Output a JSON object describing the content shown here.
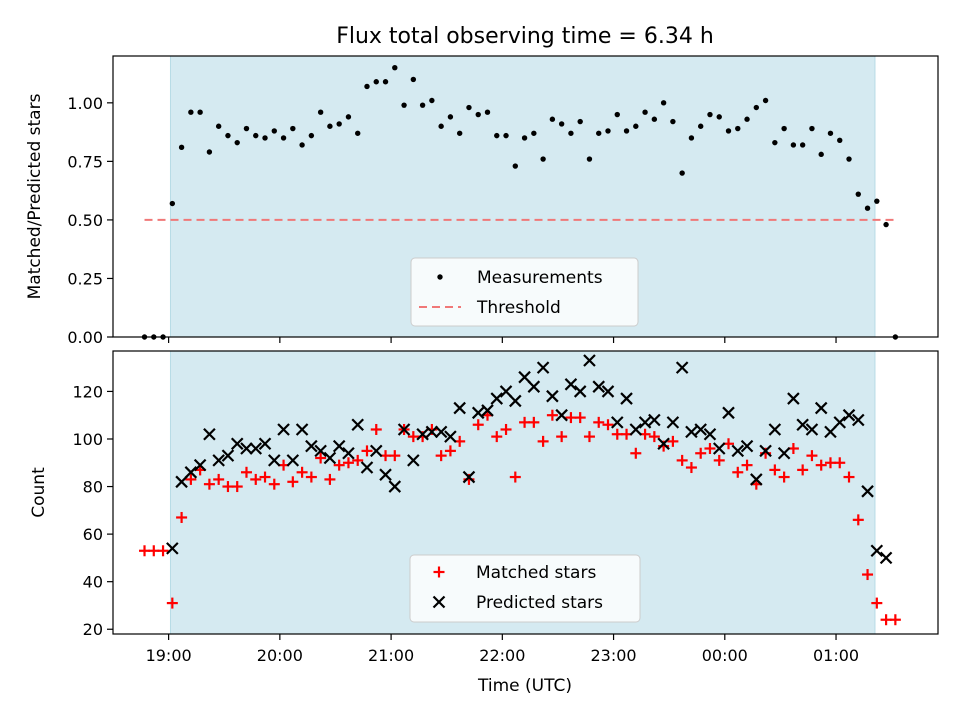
{
  "chart_data": [
    {
      "type": "scatter",
      "title": "Flux total observing time = 6.34 h",
      "xlabel": "",
      "ylabel": "Matched/Predicted stars",
      "xlim": [
        "18:30",
        "01:55"
      ],
      "ylim": [
        0.0,
        1.2
      ],
      "yticks": [
        0.0,
        0.25,
        0.5,
        0.75,
        1.0
      ],
      "ytick_labels": [
        "0.00",
        "0.25",
        "0.50",
        "0.75",
        "1.00"
      ],
      "shaded_interval": [
        "19:01",
        "01:21"
      ],
      "legend_location": "lower center",
      "series": [
        {
          "name": "Measurements",
          "kind": "points",
          "color": "#000000",
          "points": [
            [
              "18:47",
              0.0
            ],
            [
              "18:52",
              0.0
            ],
            [
              "18:57",
              0.0
            ],
            [
              "19:02",
              0.57
            ],
            [
              "19:07",
              0.81
            ],
            [
              "19:12",
              0.96
            ],
            [
              "19:17",
              0.96
            ],
            [
              "19:22",
              0.79
            ],
            [
              "19:27",
              0.9
            ],
            [
              "19:32",
              0.86
            ],
            [
              "19:37",
              0.83
            ],
            [
              "19:42",
              0.89
            ],
            [
              "19:47",
              0.86
            ],
            [
              "19:52",
              0.85
            ],
            [
              "19:57",
              0.88
            ],
            [
              "20:02",
              0.85
            ],
            [
              "20:07",
              0.89
            ],
            [
              "20:12",
              0.82
            ],
            [
              "20:17",
              0.86
            ],
            [
              "20:22",
              0.96
            ],
            [
              "20:27",
              0.9
            ],
            [
              "20:32",
              0.91
            ],
            [
              "20:37",
              0.94
            ],
            [
              "20:42",
              0.87
            ],
            [
              "20:47",
              1.07
            ],
            [
              "20:52",
              1.09
            ],
            [
              "20:57",
              1.09
            ],
            [
              "21:02",
              1.15
            ],
            [
              "21:07",
              0.99
            ],
            [
              "21:12",
              1.1
            ],
            [
              "21:17",
              0.99
            ],
            [
              "21:22",
              1.01
            ],
            [
              "21:27",
              0.9
            ],
            [
              "21:32",
              0.94
            ],
            [
              "21:37",
              0.87
            ],
            [
              "21:42",
              0.98
            ],
            [
              "21:47",
              0.95
            ],
            [
              "21:52",
              0.96
            ],
            [
              "21:57",
              0.86
            ],
            [
              "22:02",
              0.86
            ],
            [
              "22:07",
              0.73
            ],
            [
              "22:12",
              0.85
            ],
            [
              "22:17",
              0.87
            ],
            [
              "22:22",
              0.76
            ],
            [
              "22:27",
              0.93
            ],
            [
              "22:32",
              0.91
            ],
            [
              "22:37",
              0.87
            ],
            [
              "22:42",
              0.92
            ],
            [
              "22:47",
              0.76
            ],
            [
              "22:52",
              0.87
            ],
            [
              "22:57",
              0.88
            ],
            [
              "23:02",
              0.95
            ],
            [
              "23:07",
              0.88
            ],
            [
              "23:12",
              0.9
            ],
            [
              "23:17",
              0.96
            ],
            [
              "23:22",
              0.93
            ],
            [
              "23:27",
              1.0
            ],
            [
              "23:32",
              0.92
            ],
            [
              "23:37",
              0.7
            ],
            [
              "23:42",
              0.85
            ],
            [
              "23:47",
              0.9
            ],
            [
              "23:52",
              0.95
            ],
            [
              "23:57",
              0.94
            ],
            [
              "00:02",
              0.88
            ],
            [
              "00:07",
              0.89
            ],
            [
              "00:12",
              0.93
            ],
            [
              "00:17",
              0.98
            ],
            [
              "00:22",
              1.01
            ],
            [
              "00:27",
              0.83
            ],
            [
              "00:32",
              0.89
            ],
            [
              "00:37",
              0.82
            ],
            [
              "00:42",
              0.82
            ],
            [
              "00:47",
              0.89
            ],
            [
              "00:52",
              0.78
            ],
            [
              "00:57",
              0.87
            ],
            [
              "01:02",
              0.84
            ],
            [
              "01:07",
              0.76
            ],
            [
              "01:12",
              0.61
            ],
            [
              "01:17",
              0.55
            ],
            [
              "01:22",
              0.58
            ],
            [
              "01:27",
              0.48
            ],
            [
              "01:32",
              0.0
            ]
          ]
        },
        {
          "name": "Threshold",
          "kind": "dashed-line",
          "color": "#f07878",
          "points": [
            [
              "18:47",
              0.5
            ],
            [
              "01:32",
              0.5
            ]
          ]
        }
      ]
    },
    {
      "type": "scatter",
      "title": "",
      "xlabel": "Time (UTC)",
      "ylabel": "Count",
      "xlim": [
        "18:30",
        "01:55"
      ],
      "xticks": [
        "19:00",
        "20:00",
        "21:00",
        "22:00",
        "23:00",
        "00:00",
        "01:00"
      ],
      "ylim": [
        18,
        137
      ],
      "yticks": [
        20,
        40,
        60,
        80,
        100,
        120
      ],
      "shaded_interval": [
        "19:01",
        "01:21"
      ],
      "legend_location": "lower center",
      "series": [
        {
          "name": "Matched stars",
          "marker": "plus",
          "color": "#ff0000",
          "points": [
            [
              "18:47",
              53
            ],
            [
              "18:52",
              53
            ],
            [
              "18:57",
              53
            ],
            [
              "19:02",
              31
            ],
            [
              "19:07",
              67
            ],
            [
              "19:12",
              83
            ],
            [
              "19:17",
              87
            ],
            [
              "19:22",
              81
            ],
            [
              "19:27",
              83
            ],
            [
              "19:32",
              80
            ],
            [
              "19:37",
              80
            ],
            [
              "19:42",
              86
            ],
            [
              "19:47",
              83
            ],
            [
              "19:52",
              84
            ],
            [
              "19:57",
              81
            ],
            [
              "20:02",
              89
            ],
            [
              "20:07",
              82
            ],
            [
              "20:12",
              86
            ],
            [
              "20:17",
              84
            ],
            [
              "20:22",
              92
            ],
            [
              "20:27",
              83
            ],
            [
              "20:32",
              89
            ],
            [
              "20:37",
              90
            ],
            [
              "20:42",
              91
            ],
            [
              "20:47",
              95
            ],
            [
              "20:52",
              104
            ],
            [
              "20:57",
              93
            ],
            [
              "21:02",
              93
            ],
            [
              "21:07",
              104
            ],
            [
              "21:12",
              101
            ],
            [
              "21:17",
              101
            ],
            [
              "21:22",
              104
            ],
            [
              "21:27",
              93
            ],
            [
              "21:32",
              95
            ],
            [
              "21:37",
              99
            ],
            [
              "21:42",
              83
            ],
            [
              "21:47",
              106
            ],
            [
              "21:52",
              110
            ],
            [
              "21:57",
              101
            ],
            [
              "22:02",
              104
            ],
            [
              "22:07",
              84
            ],
            [
              "22:12",
              107
            ],
            [
              "22:17",
              107
            ],
            [
              "22:22",
              99
            ],
            [
              "22:27",
              110
            ],
            [
              "22:32",
              101
            ],
            [
              "22:37",
              109
            ],
            [
              "22:42",
              109
            ],
            [
              "22:47",
              101
            ],
            [
              "22:52",
              107
            ],
            [
              "22:57",
              106
            ],
            [
              "23:02",
              102
            ],
            [
              "23:07",
              102
            ],
            [
              "23:12",
              94
            ],
            [
              "23:17",
              102
            ],
            [
              "23:22",
              101
            ],
            [
              "23:27",
              97
            ],
            [
              "23:32",
              99
            ],
            [
              "23:37",
              91
            ],
            [
              "23:42",
              88
            ],
            [
              "23:47",
              94
            ],
            [
              "23:52",
              96
            ],
            [
              "23:57",
              91
            ],
            [
              "00:02",
              98
            ],
            [
              "00:07",
              86
            ],
            [
              "00:12",
              89
            ],
            [
              "00:17",
              81
            ],
            [
              "00:22",
              94
            ],
            [
              "00:27",
              87
            ],
            [
              "00:32",
              84
            ],
            [
              "00:37",
              96
            ],
            [
              "00:42",
              87
            ],
            [
              "00:47",
              93
            ],
            [
              "00:52",
              89
            ],
            [
              "00:57",
              90
            ],
            [
              "01:02",
              90
            ],
            [
              "01:07",
              84
            ],
            [
              "01:12",
              66
            ],
            [
              "01:17",
              43
            ],
            [
              "01:22",
              31
            ],
            [
              "01:27",
              24
            ],
            [
              "01:32",
              24
            ]
          ]
        },
        {
          "name": "Predicted stars",
          "marker": "cross",
          "color": "#000000",
          "points": [
            [
              "19:02",
              54
            ],
            [
              "19:07",
              82
            ],
            [
              "19:12",
              86
            ],
            [
              "19:17",
              89
            ],
            [
              "19:22",
              102
            ],
            [
              "19:27",
              91
            ],
            [
              "19:32",
              93
            ],
            [
              "19:37",
              98
            ],
            [
              "19:42",
              96
            ],
            [
              "19:47",
              96
            ],
            [
              "19:52",
              98
            ],
            [
              "19:57",
              91
            ],
            [
              "20:02",
              104
            ],
            [
              "20:07",
              91
            ],
            [
              "20:12",
              104
            ],
            [
              "20:17",
              97
            ],
            [
              "20:22",
              95
            ],
            [
              "20:27",
              92
            ],
            [
              "20:32",
              97
            ],
            [
              "20:37",
              94
            ],
            [
              "20:42",
              106
            ],
            [
              "20:47",
              88
            ],
            [
              "20:52",
              95
            ],
            [
              "20:57",
              85
            ],
            [
              "21:02",
              80
            ],
            [
              "21:07",
              104
            ],
            [
              "21:12",
              91
            ],
            [
              "21:17",
              102
            ],
            [
              "21:22",
              103
            ],
            [
              "21:27",
              103
            ],
            [
              "21:32",
              101
            ],
            [
              "21:37",
              113
            ],
            [
              "21:42",
              84
            ],
            [
              "21:47",
              111
            ],
            [
              "21:52",
              112
            ],
            [
              "21:57",
              117
            ],
            [
              "22:02",
              120
            ],
            [
              "22:07",
              116
            ],
            [
              "22:12",
              126
            ],
            [
              "22:17",
              122
            ],
            [
              "22:22",
              130
            ],
            [
              "22:27",
              118
            ],
            [
              "22:32",
              110
            ],
            [
              "22:37",
              123
            ],
            [
              "22:42",
              120
            ],
            [
              "22:47",
              133
            ],
            [
              "22:52",
              122
            ],
            [
              "22:57",
              120
            ],
            [
              "23:02",
              107
            ],
            [
              "23:07",
              117
            ],
            [
              "23:12",
              104
            ],
            [
              "23:17",
              107
            ],
            [
              "23:22",
              108
            ],
            [
              "23:27",
              98
            ],
            [
              "23:32",
              107
            ],
            [
              "23:37",
              130
            ],
            [
              "23:42",
              103
            ],
            [
              "23:47",
              104
            ],
            [
              "23:52",
              102
            ],
            [
              "23:57",
              96
            ],
            [
              "00:02",
              111
            ],
            [
              "00:07",
              95
            ],
            [
              "00:12",
              97
            ],
            [
              "00:17",
              83
            ],
            [
              "00:22",
              95
            ],
            [
              "00:27",
              104
            ],
            [
              "00:32",
              94
            ],
            [
              "00:37",
              117
            ],
            [
              "00:42",
              106
            ],
            [
              "00:47",
              104
            ],
            [
              "00:52",
              113
            ],
            [
              "00:57",
              103
            ],
            [
              "01:02",
              107
            ],
            [
              "01:07",
              110
            ],
            [
              "01:12",
              108
            ],
            [
              "01:17",
              78
            ],
            [
              "01:22",
              53
            ],
            [
              "01:27",
              50
            ]
          ]
        }
      ]
    }
  ],
  "colors": {
    "shade": "#d5eaf1",
    "shade_edge": "#b8dbe6",
    "threshold": "#f07878",
    "matched": "#ff0000",
    "predicted": "#000000",
    "measurements": "#000000"
  }
}
